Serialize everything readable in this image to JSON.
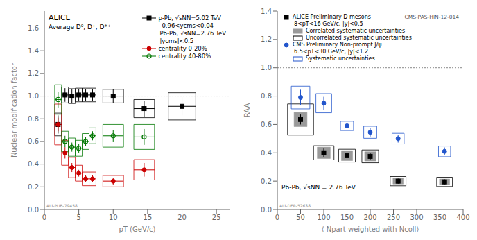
{
  "chart_data": [
    {
      "type": "scatter",
      "xlabel": "pT (GeV/c)",
      "ylabel": "Nuclear modification factor",
      "xlim": [
        0,
        27
      ],
      "ylim": [
        0,
        1.75
      ],
      "xticks": [
        0,
        5,
        10,
        15,
        20,
        25
      ],
      "yticks": [
        {
          "value": 0,
          "label": "0.0"
        },
        0.2,
        0.4,
        0.6,
        0.8,
        {
          "value": 1,
          "label": "1.0"
        },
        1.2,
        1.4,
        1.6
      ],
      "grid": false,
      "legend": "upper right",
      "hline": 1.0,
      "annotations": [
        "ALICE",
        "Average D⁰, D⁺, D*⁺",
        "-0.96<ycms<0.04",
        "Pb-Pb, √sNN=2.76 TeV",
        "|ycms|<0.5",
        "ALI-PUB-79458"
      ],
      "series": [
        {
          "name": "p-Pb, √sNN=5.02 TeV",
          "color": "#000000",
          "marker": "square",
          "x": [
            2.0,
            3.0,
            4.0,
            5.0,
            6.0,
            7.0,
            10.0,
            14.5,
            20.0
          ],
          "values": [
            0.75,
            1.01,
            1.0,
            1.01,
            1.01,
            1.01,
            1.0,
            0.89,
            0.91
          ],
          "xerr": [
            0.5,
            0.5,
            0.5,
            0.5,
            0.5,
            0.5,
            1.5,
            1.5,
            2.0
          ],
          "yerr": [
            0.08,
            0.06,
            0.06,
            0.05,
            0.05,
            0.05,
            0.06,
            0.07,
            0.08
          ],
          "box_h": [
            0.2,
            0.14,
            0.13,
            0.12,
            0.12,
            0.12,
            0.12,
            0.16,
            0.24
          ]
        },
        {
          "name": "centrality 0-20%",
          "color": "#cc0000",
          "marker": "circle",
          "x": [
            2.0,
            3.0,
            4.0,
            5.0,
            6.0,
            7.0,
            10.0,
            14.5
          ],
          "values": [
            0.75,
            0.5,
            0.37,
            0.32,
            0.27,
            0.27,
            0.25,
            0.35
          ],
          "xerr": [
            0.5,
            0.5,
            0.5,
            0.5,
            0.5,
            0.5,
            1.5,
            1.5
          ],
          "yerr": [
            0.06,
            0.05,
            0.04,
            0.03,
            0.03,
            0.03,
            0.03,
            0.06
          ],
          "box_h": [
            0.36,
            0.22,
            0.18,
            0.14,
            0.12,
            0.12,
            0.1,
            0.18
          ]
        },
        {
          "name": "centrality 40-80%",
          "color": "#007700",
          "marker": "open_circle",
          "x": [
            2.0,
            3.0,
            4.0,
            5.0,
            6.0,
            7.0,
            10.0,
            14.5
          ],
          "values": [
            0.97,
            0.6,
            0.55,
            0.54,
            0.6,
            0.65,
            0.65,
            0.64
          ],
          "xerr": [
            0.5,
            0.5,
            0.5,
            0.5,
            0.5,
            0.5,
            1.5,
            1.5
          ],
          "yerr": [
            0.07,
            0.05,
            0.04,
            0.04,
            0.04,
            0.04,
            0.05,
            0.07
          ],
          "box_h": [
            0.26,
            0.18,
            0.16,
            0.14,
            0.14,
            0.14,
            0.2,
            0.22
          ]
        }
      ]
    },
    {
      "type": "scatter",
      "xlabel": "⟨ Npart weighted with Ncoll⟩",
      "ylabel": "RAA",
      "xlim": [
        0,
        400
      ],
      "ylim": [
        0,
        1.4
      ],
      "xticks": [
        0,
        50,
        100,
        150,
        200,
        250,
        300,
        350,
        400
      ],
      "yticks": [
        {
          "value": 0,
          "label": "0.0"
        },
        0.2,
        0.4,
        0.6,
        0.8,
        {
          "value": 1,
          "label": "1.0"
        },
        1.2,
        1.4
      ],
      "grid": false,
      "legend": "upper left",
      "hline": 1.0,
      "annotations": [
        "8<pT<16 GeV/c, |y|<0.5",
        "Correlated systematic uncertainties",
        "Uncorrelated systematic uncertainties",
        "6.5<pT<30 GeV/c, |y|<1.2",
        "Systematic uncertainties",
        "CMS-PAS-HIN-12-014",
        "Pb-Pb, √sNN = 2.76 TeV",
        "ALI-DER-52638"
      ],
      "series": [
        {
          "name": "ALICE Preliminary D mesons",
          "color": "#000000",
          "marker": "square",
          "x": [
            50,
            100,
            150,
            200,
            260,
            360
          ],
          "values": [
            0.635,
            0.4,
            0.38,
            0.375,
            0.2,
            0.195
          ],
          "yerr": [
            0.035,
            0.03,
            0.025,
            0.025,
            0.018,
            0.018
          ],
          "corr_color": "#999999",
          "corr_box_h": [
            0.1,
            0.08,
            0.07,
            0.065,
            0.04,
            0.04
          ],
          "corr_box_w": [
            14,
            14,
            12,
            12,
            11,
            11
          ],
          "box_h": [
            0.22,
            0.1,
            0.09,
            0.09,
            0.065,
            0.065
          ],
          "box_w": [
            28,
            22,
            18,
            18,
            17,
            17
          ]
        },
        {
          "name": "CMS Preliminary Non-prompt J/ψ",
          "color": "#2255cc",
          "marker": "circle",
          "x": [
            50,
            100,
            150,
            200,
            260,
            360
          ],
          "values": [
            0.79,
            0.75,
            0.59,
            0.545,
            0.5,
            0.41
          ],
          "yerr": [
            0.055,
            0.045,
            0.03,
            0.03,
            0.028,
            0.028
          ],
          "box_h": [
            0.16,
            0.135,
            0.065,
            0.085,
            0.075,
            0.075
          ],
          "box_w": [
            20,
            17,
            14,
            14,
            13,
            13
          ]
        }
      ]
    }
  ]
}
